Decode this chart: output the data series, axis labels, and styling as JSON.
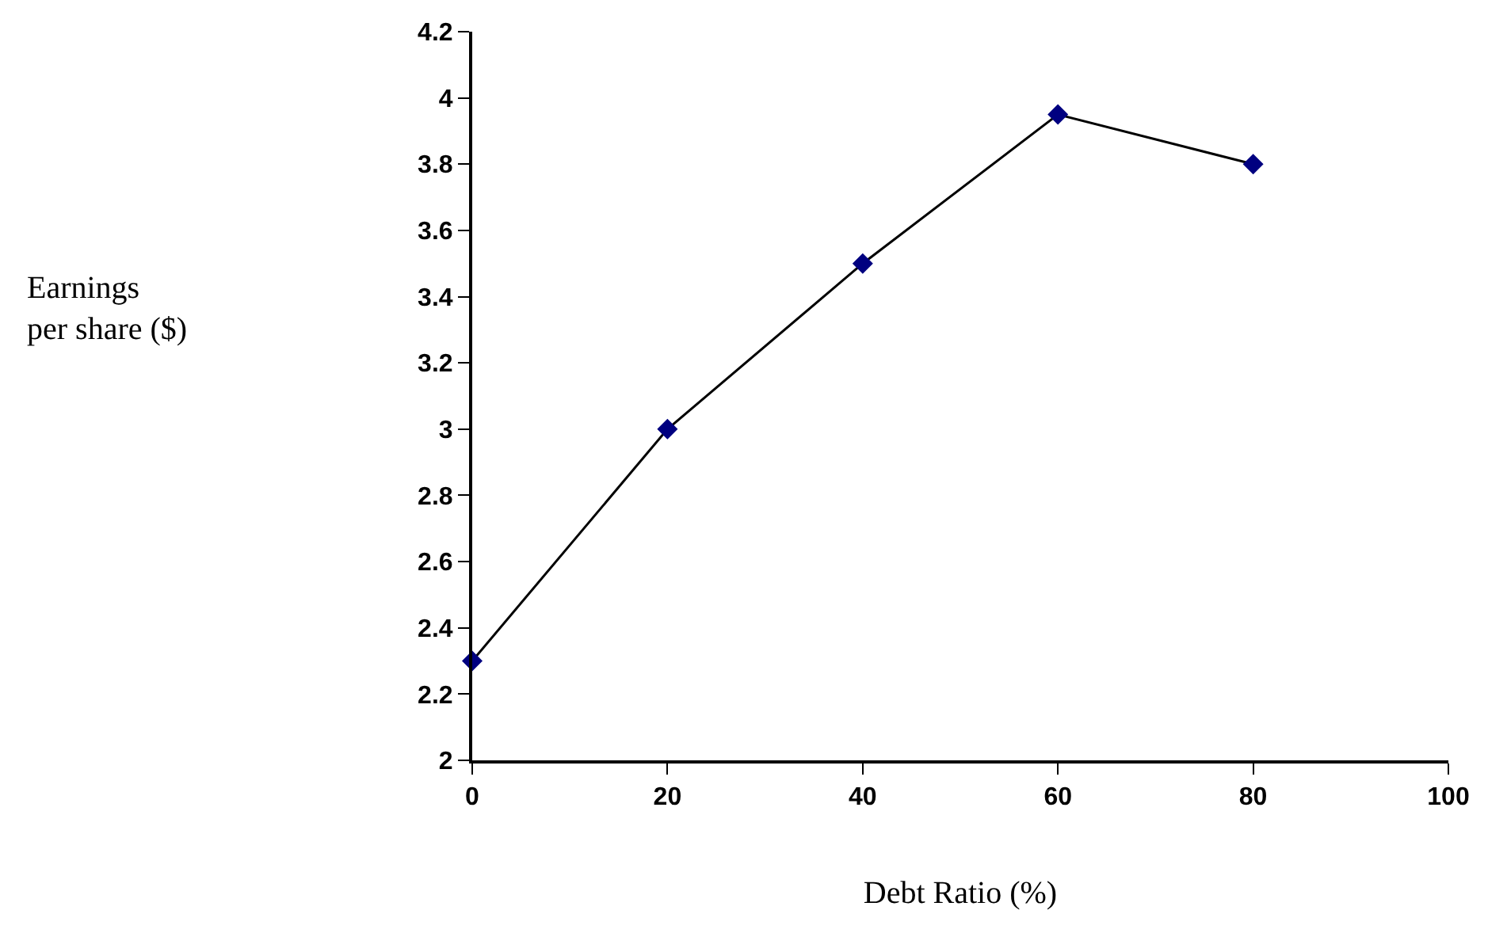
{
  "chart_data": {
    "type": "line",
    "xlabel": "Debt Ratio (%)",
    "annotations": [
      "Earnings\nper share ($)"
    ],
    "x": [
      0,
      20,
      40,
      60,
      80
    ],
    "series": [
      {
        "color": "#000080",
        "values": [
          2.3,
          3.0,
          3.5,
          3.95,
          3.8
        ]
      }
    ],
    "xlim": [
      0,
      100
    ],
    "xticks": [
      0,
      20,
      40,
      60,
      80,
      100
    ],
    "ylim": [
      2,
      4.2
    ],
    "yticks": [
      2,
      2.2,
      2.4,
      2.6,
      2.8,
      3,
      3.2,
      3.4,
      3.6,
      3.8,
      4,
      4.2
    ],
    "marker": "diamond",
    "line_style": "solid"
  }
}
